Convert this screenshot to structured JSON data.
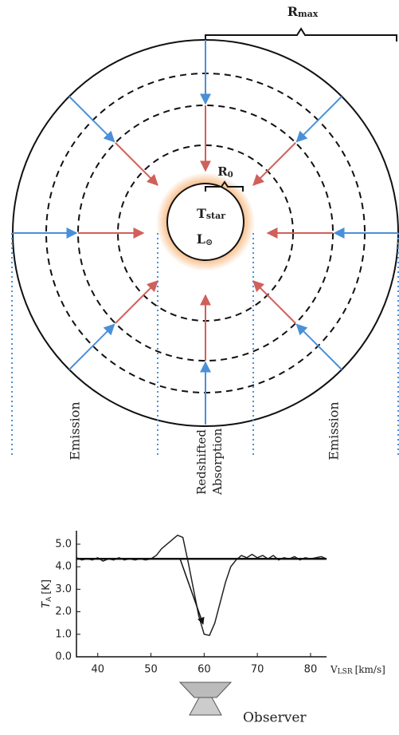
{
  "labels": {
    "r_max": {
      "main": "R",
      "sub": "max"
    },
    "r_0": {
      "main": "R",
      "sub": "0"
    },
    "t_star": {
      "main": "T",
      "sub": "star"
    },
    "l_sun": {
      "main": "L",
      "sub": "⊙"
    },
    "emission_left": "Emission",
    "redshifted": "Redshifted",
    "absorption": "Absorption",
    "emission_right": "Emission",
    "observer": "Observer"
  },
  "chart_data": {
    "type": "line",
    "ylabel": {
      "main": "T",
      "sub": "A",
      "unit": "[K]"
    },
    "xlabel": {
      "main": "V",
      "sub": "LSR",
      "unit": "[km/s]"
    },
    "xlim": [
      36,
      83
    ],
    "ylim": [
      0,
      5.6
    ],
    "xticks": [
      40,
      50,
      60,
      70,
      80
    ],
    "yticks": [
      {
        "value": 0,
        "label": "0.0"
      },
      {
        "value": 1,
        "label": "1.0"
      },
      {
        "value": 2,
        "label": "2.0"
      },
      {
        "value": 3,
        "label": "3.0"
      },
      {
        "value": 4,
        "label": "4.0"
      },
      {
        "value": 5,
        "label": "5.0"
      }
    ],
    "series": [
      {
        "color": "#222222",
        "x": [
          36,
          37,
          38,
          39,
          40,
          41,
          42,
          43,
          44,
          45,
          46,
          47,
          48,
          49,
          50,
          51,
          52,
          53,
          54,
          55,
          56,
          57,
          58,
          59,
          60,
          61,
          62,
          63,
          64,
          65,
          66,
          67,
          68,
          69,
          70,
          71,
          72,
          73,
          74,
          75,
          76,
          77,
          78,
          79,
          80,
          81,
          82,
          83
        ],
        "values": [
          4.4,
          4.3,
          4.35,
          4.3,
          4.4,
          4.25,
          4.35,
          4.3,
          4.4,
          4.3,
          4.35,
          4.3,
          4.35,
          4.3,
          4.35,
          4.5,
          4.8,
          5.0,
          5.2,
          5.4,
          5.3,
          4.2,
          3.0,
          1.8,
          1.0,
          0.95,
          1.5,
          2.4,
          3.3,
          4.0,
          4.3,
          4.5,
          4.4,
          4.55,
          4.4,
          4.5,
          4.35,
          4.5,
          4.3,
          4.4,
          4.35,
          4.45,
          4.3,
          4.4,
          4.35,
          4.4,
          4.45,
          4.35
        ]
      },
      {
        "color": "#111111",
        "x": [
          36,
          83
        ],
        "values": [
          4.35,
          4.35
        ]
      }
    ]
  }
}
